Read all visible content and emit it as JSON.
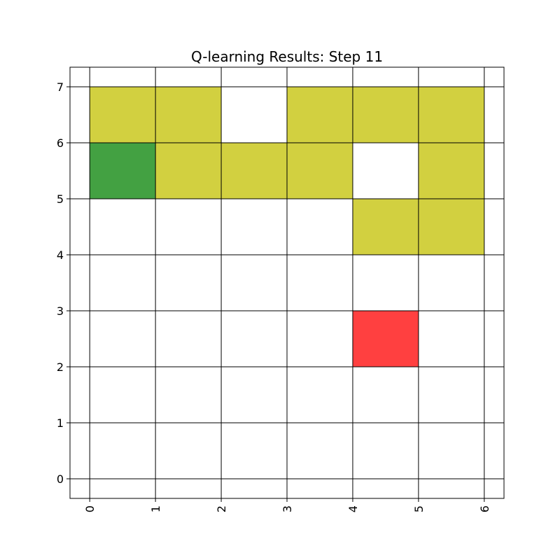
{
  "chart_data": {
    "type": "heatmap",
    "title": "Q-learning Results: Step 11",
    "xlabel": "",
    "ylabel": "",
    "xlim": [
      -0.3,
      6.3
    ],
    "ylim": [
      -0.35,
      7.35
    ],
    "x_ticks": [
      0,
      1,
      2,
      3,
      4,
      5,
      6
    ],
    "y_ticks": [
      0,
      1,
      2,
      3,
      4,
      5,
      6,
      7
    ],
    "x_tick_rotation": 90,
    "grid": true,
    "grid_color": "#000000",
    "cells": [
      {
        "x": 0,
        "y": 6,
        "color": "#d2d040"
      },
      {
        "x": 1,
        "y": 6,
        "color": "#d2d040"
      },
      {
        "x": 3,
        "y": 6,
        "color": "#d2d040"
      },
      {
        "x": 4,
        "y": 6,
        "color": "#d2d040"
      },
      {
        "x": 5,
        "y": 6,
        "color": "#d2d040"
      },
      {
        "x": 0,
        "y": 5,
        "color": "#43a142"
      },
      {
        "x": 1,
        "y": 5,
        "color": "#d2d040"
      },
      {
        "x": 2,
        "y": 5,
        "color": "#d2d040"
      },
      {
        "x": 3,
        "y": 5,
        "color": "#d2d040"
      },
      {
        "x": 5,
        "y": 5,
        "color": "#d2d040"
      },
      {
        "x": 4,
        "y": 4,
        "color": "#d2d040"
      },
      {
        "x": 5,
        "y": 4,
        "color": "#d2d040"
      },
      {
        "x": 4,
        "y": 2,
        "color": "#ff4040"
      }
    ]
  }
}
